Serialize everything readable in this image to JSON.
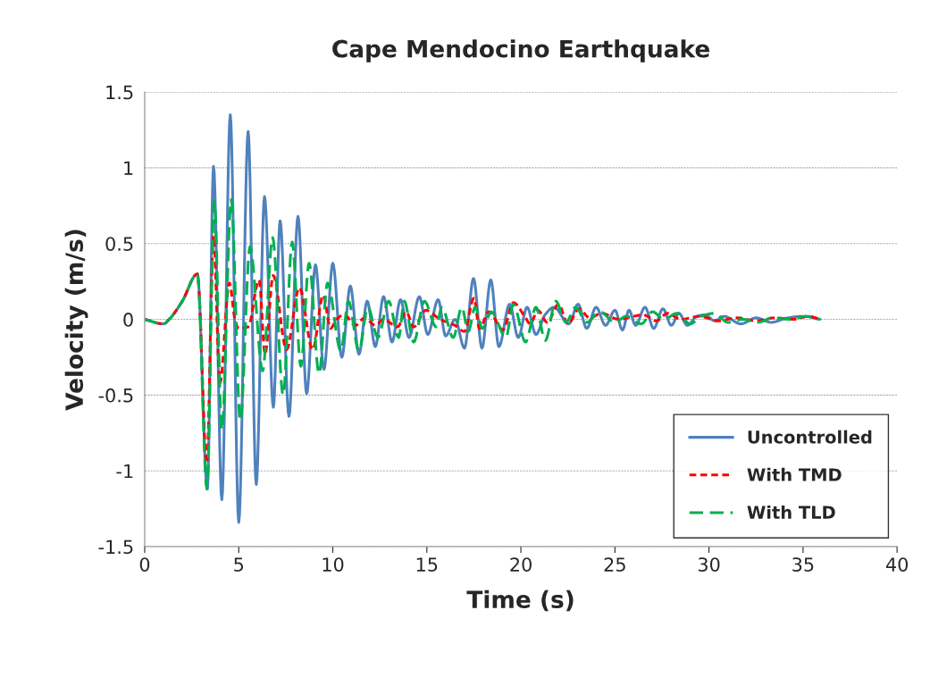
{
  "chart_data": {
    "type": "line",
    "title": "Cape Mendocino Earthquake",
    "xlabel": "Time (s)",
    "ylabel": "Velocity (m/s)",
    "xlim": [
      0,
      40
    ],
    "xticks": [
      0,
      5,
      10,
      15,
      20,
      25,
      30,
      35,
      40
    ],
    "ylim": [
      -1.5,
      1.5
    ],
    "yticks": [
      -1.5,
      -1,
      -0.5,
      0,
      0.5,
      1,
      1.5
    ],
    "grid": "y",
    "legend": "bottom right",
    "marker": "none",
    "series": [
      {
        "name": "Uncontrolled",
        "color": "#4f81bd",
        "line_style": "solid",
        "x": [
          0,
          1.0,
          1.3,
          2.0,
          2.8,
          3.33,
          3.66,
          4.1,
          4.55,
          5.0,
          5.5,
          5.93,
          6.37,
          6.84,
          7.2,
          7.67,
          8.15,
          8.61,
          9.08,
          9.53,
          10.0,
          10.48,
          10.93,
          11.39,
          11.83,
          12.26,
          12.7,
          13.15,
          13.6,
          14.05,
          14.6,
          15.05,
          15.6,
          16.0,
          16.5,
          17.0,
          17.48,
          17.93,
          18.4,
          18.83,
          19.4,
          19.86,
          20.33,
          20.8,
          21.28,
          21.76,
          22.55,
          23.04,
          23.5,
          24.0,
          24.5,
          25.0,
          25.4,
          25.75,
          26.1,
          26.6,
          27.06,
          27.55,
          28.0,
          28.4,
          28.85,
          29.35,
          29.8,
          30.3,
          30.8,
          31.7,
          32.5,
          33.3,
          34.2,
          35.0,
          35.9
        ],
        "values": [
          0,
          -0.03,
          0.0,
          0.12,
          0.3,
          -1.12,
          1.01,
          -1.19,
          1.35,
          -1.34,
          1.24,
          -1.09,
          0.81,
          -0.58,
          0.65,
          -0.64,
          0.68,
          -0.49,
          0.36,
          -0.33,
          0.37,
          -0.25,
          0.22,
          -0.23,
          0.12,
          -0.18,
          0.15,
          -0.15,
          0.13,
          -0.12,
          0.15,
          -0.1,
          0.13,
          -0.11,
          0.0,
          -0.19,
          0.27,
          -0.19,
          0.26,
          -0.18,
          0.1,
          -0.12,
          0.08,
          -0.1,
          0.03,
          0.08,
          -0.03,
          0.1,
          -0.06,
          0.08,
          -0.04,
          0.06,
          -0.07,
          0.06,
          -0.04,
          0.08,
          -0.06,
          0.07,
          -0.04,
          0.04,
          -0.04,
          0.02,
          0.03,
          -0.01,
          0.02,
          -0.03,
          0.01,
          -0.02,
          0.01,
          0.02,
          0.0
        ]
      },
      {
        "name": "With TMD",
        "color": "#ff0000",
        "line_style": "dotted",
        "x": [
          0,
          1.0,
          1.3,
          2.0,
          2.8,
          3.3,
          3.66,
          4.0,
          4.5,
          4.8,
          5.0,
          5.5,
          6.08,
          6.4,
          6.83,
          7.54,
          8.22,
          8.93,
          9.49,
          9.88,
          10.2,
          10.6,
          11.2,
          11.7,
          12.26,
          12.7,
          13.44,
          13.9,
          14.3,
          14.95,
          15.7,
          16.5,
          17.0,
          17.5,
          17.8,
          18.3,
          19.05,
          19.6,
          20.2,
          20.5,
          20.9,
          21.4,
          22.0,
          22.5,
          23.1,
          23.65,
          24.3,
          25.2,
          26.0,
          26.5,
          27.2,
          27.8,
          28.5,
          29.5,
          30.5,
          31.5,
          32.5,
          33.5,
          34.5,
          35.3,
          35.9
        ],
        "values": [
          0,
          -0.03,
          0.0,
          0.12,
          0.3,
          -0.95,
          0.55,
          -0.42,
          0.24,
          0.0,
          -0.06,
          -0.05,
          0.26,
          -0.23,
          0.29,
          -0.2,
          0.21,
          -0.2,
          0.16,
          -0.06,
          0.0,
          0.03,
          -0.04,
          0.01,
          -0.04,
          0.0,
          -0.05,
          0.05,
          -0.05,
          0.06,
          0.0,
          -0.04,
          -0.08,
          0.14,
          -0.06,
          0.05,
          -0.07,
          0.11,
          0.02,
          -0.03,
          0.06,
          -0.02,
          0.1,
          -0.03,
          0.07,
          0.01,
          0.04,
          0.0,
          0.02,
          0.03,
          -0.01,
          0.04,
          0.0,
          0.02,
          -0.01,
          0.01,
          -0.01,
          0.01,
          0.0,
          0.02,
          0.0
        ]
      },
      {
        "name": "With TLD",
        "color": "#00b050",
        "line_style": "dashed",
        "x": [
          0,
          1.0,
          1.3,
          2.0,
          2.8,
          3.31,
          3.7,
          4.1,
          4.6,
          5.08,
          5.6,
          6.27,
          6.8,
          7.36,
          7.84,
          8.3,
          8.74,
          9.27,
          9.72,
          10.43,
          10.83,
          11.39,
          11.86,
          12.4,
          12.97,
          13.5,
          13.8,
          14.3,
          14.87,
          15.5,
          15.8,
          16.4,
          16.86,
          17.2,
          17.57,
          17.96,
          18.43,
          19.2,
          19.6,
          20.25,
          20.8,
          21.3,
          21.85,
          22.4,
          22.9,
          23.5,
          24.2,
          25.0,
          25.6,
          26.4,
          27.0,
          27.6,
          28.3,
          29.0,
          29.6,
          30.3,
          31.0,
          31.8,
          32.6,
          33.4,
          34.3,
          35.2,
          35.9
        ],
        "values": [
          0,
          -0.03,
          0.0,
          0.12,
          0.3,
          -1.12,
          0.78,
          -0.73,
          0.79,
          -0.67,
          0.48,
          -0.34,
          0.54,
          -0.5,
          0.51,
          -0.31,
          0.37,
          -0.36,
          0.24,
          -0.21,
          0.12,
          -0.21,
          0.08,
          -0.12,
          0.12,
          -0.12,
          0.12,
          -0.15,
          0.12,
          -0.05,
          0.08,
          -0.12,
          0.08,
          -0.08,
          0.08,
          -0.06,
          0.05,
          -0.12,
          0.1,
          -0.15,
          0.08,
          -0.14,
          0.12,
          -0.02,
          0.08,
          -0.02,
          0.05,
          -0.02,
          0.02,
          -0.03,
          0.05,
          0.0,
          0.04,
          -0.03,
          0.02,
          0.04,
          -0.02,
          0.0,
          -0.02,
          0.01,
          0.0,
          0.02,
          0.0
        ]
      }
    ]
  }
}
